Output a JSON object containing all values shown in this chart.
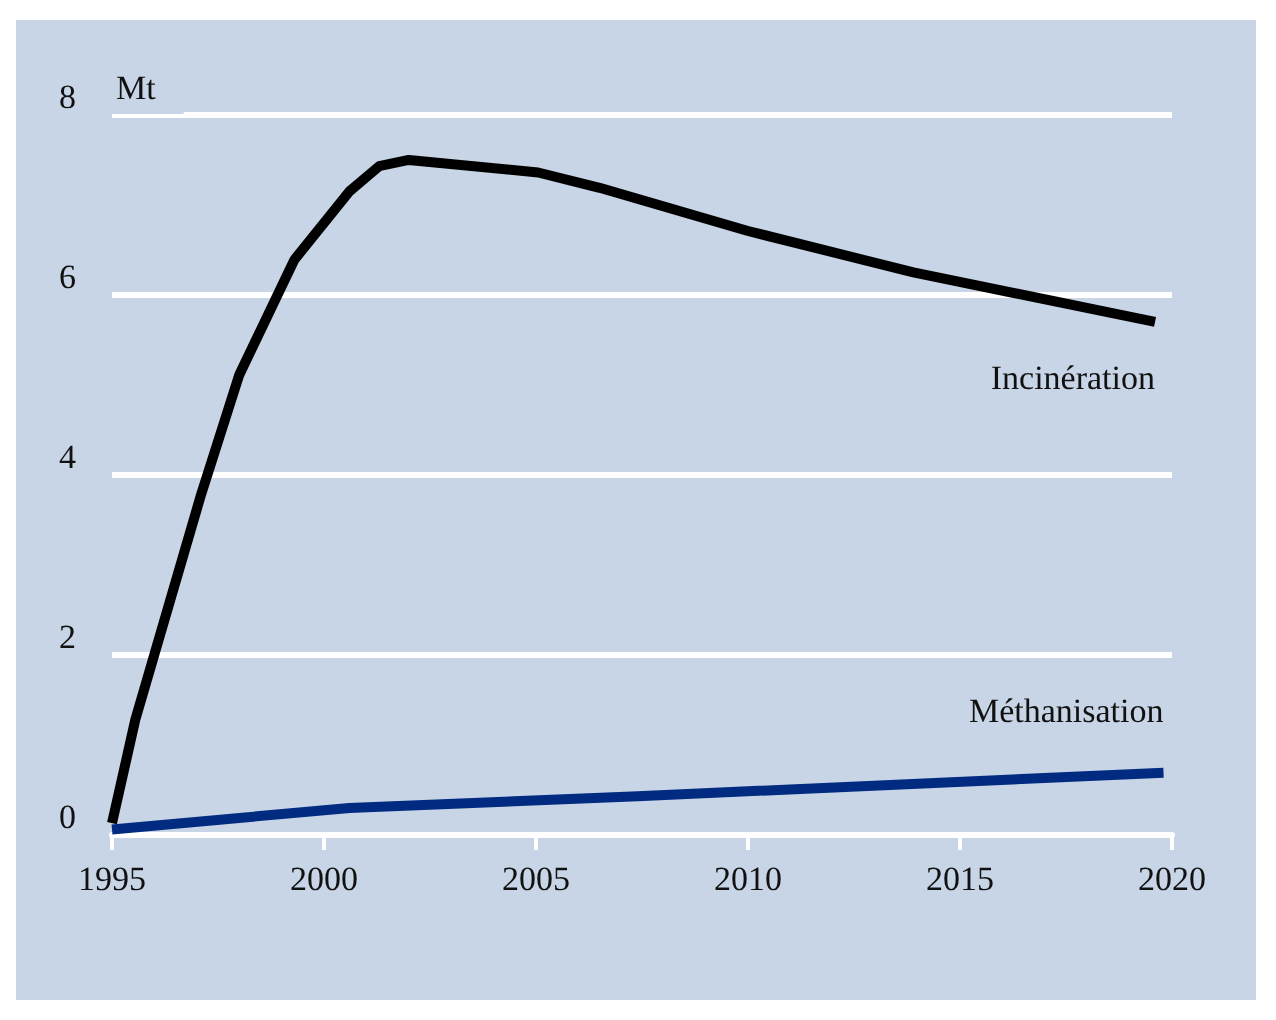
{
  "chart_data": {
    "type": "line",
    "ylabel": "Mt",
    "xlim": [
      1995,
      2020
    ],
    "xticks": [
      1995,
      2000,
      2005,
      2010,
      2015,
      2020
    ],
    "ylim": [
      0,
      8
    ],
    "yticks": [
      0,
      2,
      4,
      6,
      8
    ],
    "grid": "y",
    "legend": false,
    "marker": "none",
    "line_style": "solid",
    "series": [
      {
        "name": "Incinération",
        "color": "#000000",
        "x": [
          1995,
          1995.55,
          1997.1,
          1998,
          1999.3,
          2000.6,
          2001.3,
          2002,
          2005.05,
          2006.5,
          2010,
          2013.9,
          2019.6
        ],
        "values": [
          0.12,
          1.27,
          3.77,
          5.1,
          6.38,
          7.14,
          7.42,
          7.49,
          7.35,
          7.18,
          6.7,
          6.24,
          5.69
        ]
      },
      {
        "name": "Méthanisation",
        "color": "#002b80",
        "x": [
          1995,
          2000.6,
          2007.4,
          2019.8
        ],
        "values": [
          0.05,
          0.29,
          0.42,
          0.68
        ]
      }
    ]
  }
}
